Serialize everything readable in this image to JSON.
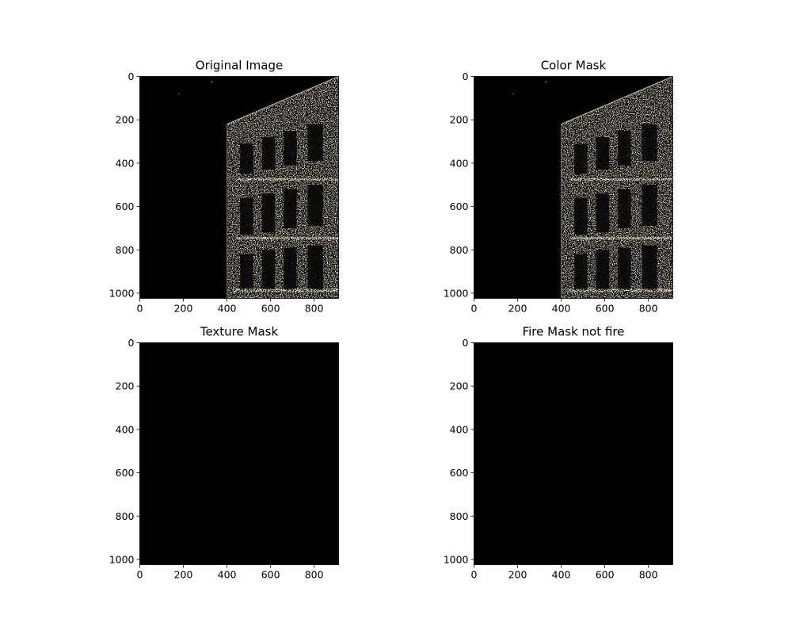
{
  "chart_data": [
    {
      "type": "image",
      "title": "Original Image",
      "xlim": [
        0,
        912
      ],
      "ylim": [
        1024,
        0
      ],
      "xticks": [
        0,
        200,
        400,
        600,
        800
      ],
      "yticks": [
        0,
        200,
        400,
        600,
        800,
        1000
      ],
      "content": "building-facade",
      "red_marks": true
    },
    {
      "type": "image",
      "title": "Color Mask",
      "xlim": [
        0,
        912
      ],
      "ylim": [
        1024,
        0
      ],
      "xticks": [
        0,
        200,
        400,
        600,
        800
      ],
      "yticks": [
        0,
        200,
        400,
        600,
        800,
        1000
      ],
      "content": "building-facade",
      "red_marks": true
    },
    {
      "type": "image",
      "title": "Texture Mask",
      "xlim": [
        0,
        912
      ],
      "ylim": [
        1024,
        0
      ],
      "xticks": [
        0,
        200,
        400,
        600,
        800
      ],
      "yticks": [
        0,
        200,
        400,
        600,
        800,
        1000
      ],
      "content": "empty"
    },
    {
      "type": "image",
      "title": "Fire Mask not fire",
      "xlim": [
        0,
        912
      ],
      "ylim": [
        1024,
        0
      ],
      "xticks": [
        0,
        200,
        400,
        600,
        800
      ],
      "yticks": [
        0,
        200,
        400,
        600,
        800,
        1000
      ],
      "content": "empty"
    }
  ],
  "colors": {
    "background": "#ffffff",
    "image_background": "#000000",
    "speckle": "#e8d3a8",
    "speckle_dim": "#7a6a50",
    "mark": "#c0392b",
    "axis": "#000000"
  }
}
